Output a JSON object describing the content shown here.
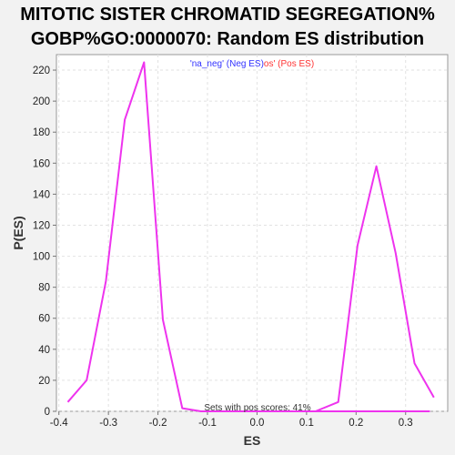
{
  "chart_data": {
    "type": "line",
    "title_line1": "MITOTIC SISTER CHROMATID SEGREGATION%",
    "title_line2": "GOBP%GO:0000070: Random ES distribution",
    "xlabel": "ES",
    "ylabel": "P(ES)",
    "xlim": [
      -0.405,
      0.385
    ],
    "ylim": [
      0,
      230
    ],
    "x_ticks": [
      "-0.4",
      "-0.3",
      "-0.2",
      "-0.1",
      "0.0",
      "0.1",
      "0.2",
      "0.3"
    ],
    "y_ticks": [
      "0",
      "20",
      "40",
      "60",
      "80",
      "100",
      "120",
      "140",
      "160",
      "180",
      "200",
      "220"
    ],
    "grid": true,
    "legend": {
      "position": "top-center",
      "neg_text": "'na_neg' (Neg ES)",
      "pos_text": "os' (Pos ES)",
      "neg_color": "#3333ff",
      "pos_color": "#ff3333"
    },
    "annotation": "Sets with pos scores: 41%",
    "series": [
      {
        "color": "#ee33ee",
        "x": [
          -0.382,
          -0.344,
          -0.305,
          -0.267,
          -0.228,
          -0.19,
          -0.151,
          -0.113,
          -0.074,
          -0.036,
          0.003,
          0.041,
          0.08,
          0.118,
          0.157,
          0.195,
          0.234,
          0.272,
          0.311,
          0.349
        ],
        "y": [
          6,
          20,
          84,
          188,
          225,
          59,
          2,
          0,
          0,
          0,
          0,
          0,
          0,
          0,
          0,
          0,
          0,
          0,
          0,
          0
        ]
      },
      {
        "color": "#ee33ee",
        "x": [
          -0.113,
          -0.074,
          -0.036,
          0.003,
          0.041,
          0.08,
          0.118,
          0.164,
          0.203,
          0.241,
          0.28,
          0.318,
          0.357
        ],
        "y": [
          0,
          0,
          0,
          0,
          0,
          0,
          0,
          6,
          107,
          158,
          102,
          31,
          9
        ]
      }
    ]
  }
}
